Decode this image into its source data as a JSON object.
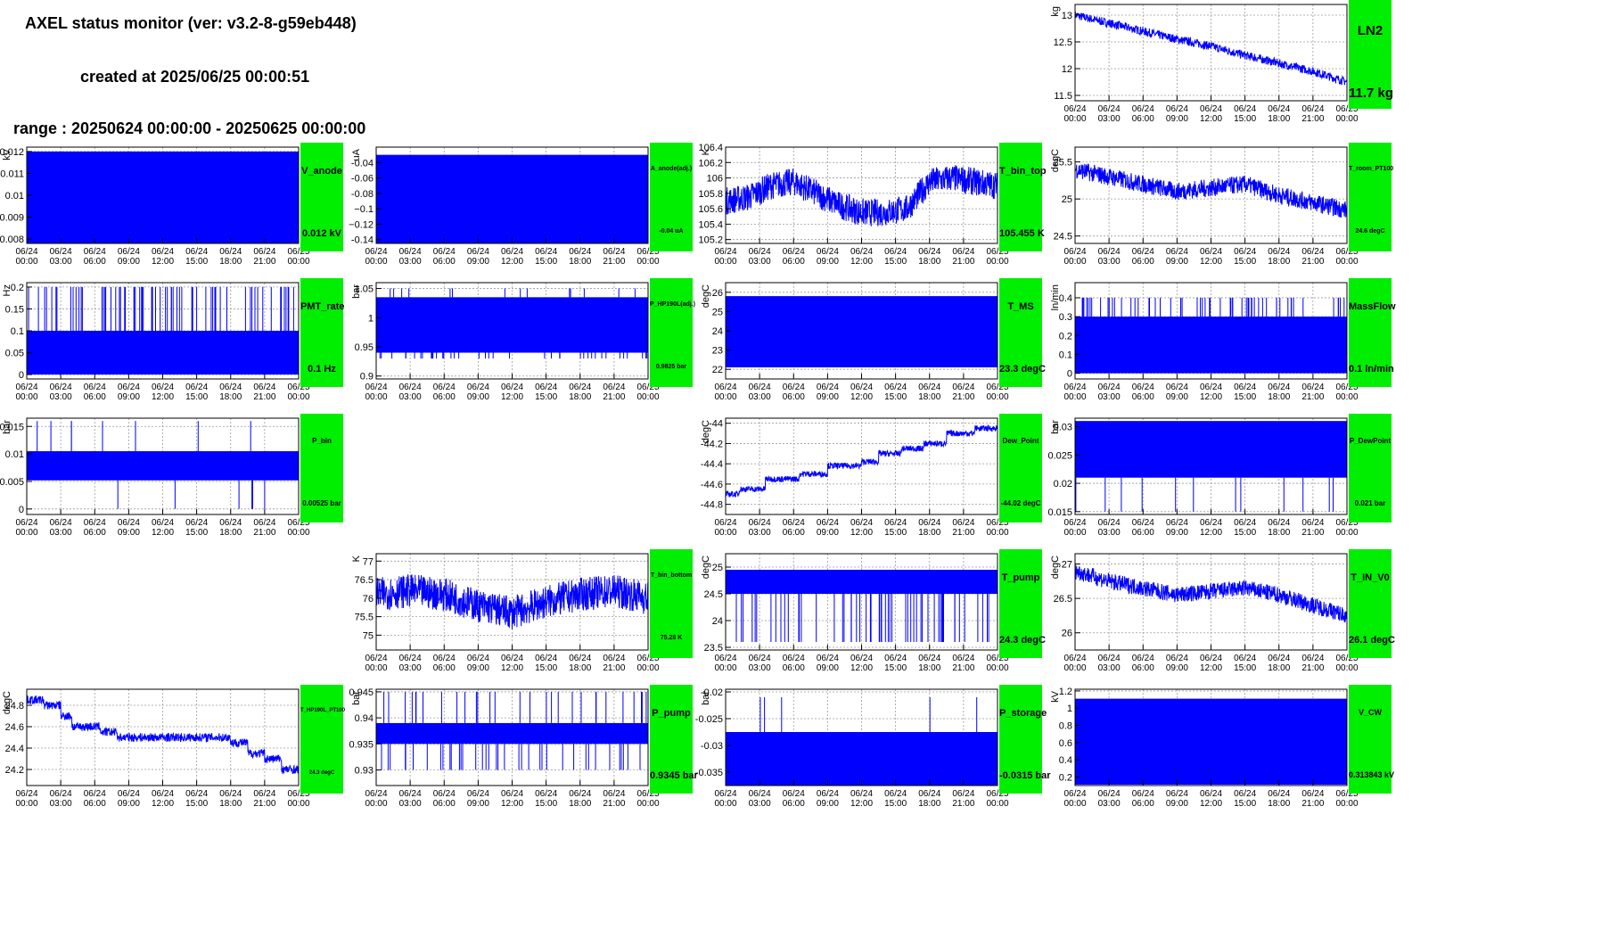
{
  "header": {
    "title": "AXEL status monitor (ver: v3.2-8-g59eb448)",
    "created": "created at 2025/06/25 00:00:51",
    "range": "range : 20250624 00:00:00 - 20250625 00:00:00"
  },
  "colors": {
    "trace": "#0000ff",
    "status_ok": "#00ee00",
    "frame": "#000000",
    "grid": "#9a9a9a"
  },
  "chart_data": [
    {
      "name": "LN2",
      "ylabel": "kg",
      "row": 0,
      "col": 3,
      "type": "line",
      "ylim": [
        11.4,
        13.2
      ],
      "yticks": [
        "11.5",
        "12",
        "12.5",
        "13"
      ],
      "ytick_values": [
        11.5,
        12,
        12.5,
        13
      ],
      "status_name": "LN2",
      "status_value": "11.7 kg",
      "name_size": 15,
      "value_size": 15,
      "series": {
        "kind": "line",
        "x": [
          0,
          3,
          6,
          9,
          12,
          15,
          18,
          21,
          24
        ],
        "values": [
          13.0,
          12.85,
          12.7,
          12.55,
          12.42,
          12.25,
          12.1,
          11.95,
          11.75
        ],
        "noise": 0.08
      }
    },
    {
      "name": "V_anode",
      "ylabel": "kV",
      "row": 1,
      "col": 0,
      "type": "line",
      "ylim": [
        0.0078,
        0.0122
      ],
      "yticks": [
        "0.008",
        "0.009",
        "0.01",
        "0.011",
        "0.012"
      ],
      "ytick_values": [
        0.008,
        0.009,
        0.01,
        0.011,
        0.012
      ],
      "status_name": "V_anode",
      "status_value": "0.012 kV",
      "name_size": 11,
      "value_size": 11,
      "series": {
        "kind": "fill",
        "lo": 0.0078,
        "hi": 0.012
      }
    },
    {
      "name": "A_anode(adj.)",
      "ylabel": "uA",
      "row": 1,
      "col": 1,
      "type": "line",
      "ylim": [
        -0.145,
        -0.02
      ],
      "yticks": [
        "-0.04",
        "-0.06",
        "-0.08",
        "−0.1",
        "−0.12",
        "-0.14"
      ],
      "ytick_values": [
        -0.04,
        -0.06,
        -0.08,
        -0.1,
        -0.12,
        -0.14
      ],
      "status_name": "A_anode(adj.)",
      "status_value": "-0.04 uA",
      "name_size": 7,
      "value_size": 7,
      "series": {
        "kind": "fill",
        "lo": -0.145,
        "hi": -0.03
      }
    },
    {
      "name": "T_bin_top",
      "ylabel": "K",
      "row": 1,
      "col": 2,
      "type": "line",
      "ylim": [
        105.15,
        106.4
      ],
      "yticks": [
        "105.2",
        "105.4",
        "105.6",
        "105.8",
        "106",
        "106.2",
        "106.4"
      ],
      "ytick_values": [
        105.2,
        105.4,
        105.6,
        105.8,
        106,
        106.2,
        106.4
      ],
      "status_name": "T_bin_top",
      "status_value": "105.455 K",
      "name_size": 11,
      "value_size": 11,
      "series": {
        "kind": "line",
        "x": [
          0,
          2,
          4,
          6,
          8,
          10,
          12,
          14,
          16,
          18,
          20,
          22,
          24
        ],
        "values": [
          105.7,
          105.75,
          105.9,
          105.95,
          105.8,
          105.65,
          105.55,
          105.55,
          105.6,
          105.95,
          106.0,
          105.95,
          105.9
        ],
        "noise": 0.18
      }
    },
    {
      "name": "T_room_PT100",
      "ylabel": "degC",
      "row": 1,
      "col": 3,
      "type": "line",
      "ylim": [
        24.4,
        25.7
      ],
      "yticks": [
        "24.5",
        "25",
        "25.5"
      ],
      "ytick_values": [
        24.5,
        25,
        25.5
      ],
      "status_name": "T_room_PT100",
      "status_value": "24.6 degC",
      "name_size": 7,
      "value_size": 7,
      "series": {
        "kind": "line",
        "x": [
          0,
          3,
          6,
          9,
          12,
          15,
          18,
          21,
          24
        ],
        "values": [
          25.4,
          25.3,
          25.2,
          25.1,
          25.15,
          25.2,
          25.05,
          24.95,
          24.85
        ],
        "noise": 0.12
      }
    },
    {
      "name": "PMT_rate",
      "ylabel": "Hz",
      "row": 2,
      "col": 0,
      "type": "line",
      "ylim": [
        -0.01,
        0.21
      ],
      "yticks": [
        "0",
        "0.05",
        "0.1",
        "0.15",
        "0.2"
      ],
      "ytick_values": [
        0,
        0.05,
        0.1,
        0.15,
        0.2
      ],
      "status_name": "PMT_rate",
      "status_value": "0.1 Hz",
      "name_size": 11,
      "value_size": 11,
      "series": {
        "kind": "fill",
        "lo": 0.0,
        "hi": 0.1,
        "spikes": 0.2,
        "spike_count": 70,
        "spikes_down": 0,
        "spike_down_count": 0
      }
    },
    {
      "name": "P_HP190L(adj.)",
      "ylabel": "bar",
      "row": 2,
      "col": 1,
      "type": "line",
      "ylim": [
        0.895,
        1.06
      ],
      "yticks": [
        "0.9",
        "0.95",
        "1",
        "1.05"
      ],
      "ytick_values": [
        0.9,
        0.95,
        1,
        1.05
      ],
      "status_name": "P_HP190L(adj.)",
      "status_value": "0.9825 bar",
      "name_size": 7,
      "value_size": 7,
      "series": {
        "kind": "fill",
        "lo": 0.94,
        "hi": 1.035,
        "spikes": 1.05,
        "spike_count": 14,
        "spikes_down": 0.93,
        "spike_down_count": 40
      }
    },
    {
      "name": "T_MS",
      "ylabel": "degC",
      "row": 2,
      "col": 2,
      "type": "line",
      "ylim": [
        21.5,
        26.5
      ],
      "yticks": [
        "22",
        "23",
        "24",
        "25",
        "26"
      ],
      "ytick_values": [
        22,
        23,
        24,
        25,
        26
      ],
      "status_name": "T_MS",
      "status_value": "23.3 degC",
      "name_size": 11,
      "value_size": 11,
      "series": {
        "kind": "fill",
        "lo": 22.1,
        "hi": 25.8
      }
    },
    {
      "name": "MassFlow",
      "ylabel": "ln/min",
      "row": 2,
      "col": 3,
      "type": "line",
      "ylim": [
        -0.03,
        0.48
      ],
      "yticks": [
        "0",
        "0.1",
        "0.2",
        "0.3",
        "0.4"
      ],
      "ytick_values": [
        0,
        0.1,
        0.2,
        0.3,
        0.4
      ],
      "status_name": "MassFlow",
      "status_value": "0.1 ln/min",
      "name_size": 11,
      "value_size": 11,
      "series": {
        "kind": "fill",
        "lo": 0.0,
        "hi": 0.3,
        "spikes": 0.4,
        "spike_count": 60,
        "spikes_down": 0,
        "spike_down_count": 0
      }
    },
    {
      "name": "P_bin",
      "ylabel": "bar",
      "row": 3,
      "col": 0,
      "type": "line",
      "ylim": [
        -0.001,
        0.0165
      ],
      "yticks": [
        "0",
        "0.005",
        "0.01",
        "0.015"
      ],
      "ytick_values": [
        0,
        0.005,
        0.01,
        0.015
      ],
      "status_name": "P_bin",
      "status_value": "0.00525 bar",
      "name_size": 8,
      "value_size": 8,
      "series": {
        "kind": "fill",
        "lo": 0.0052,
        "hi": 0.0105,
        "spikes": 0.016,
        "spike_count": 8,
        "spikes_down": 0.0,
        "spike_down_count": 6
      }
    },
    {
      "name": "Dew_Point",
      "ylabel": "degC",
      "row": 3,
      "col": 2,
      "type": "line",
      "ylim": [
        -44.9,
        -43.95
      ],
      "yticks": [
        "-44.8",
        "-44.6",
        "-44.4",
        "-44.2",
        "-44"
      ],
      "ytick_values": [
        -44.8,
        -44.6,
        -44.4,
        -44.2,
        -44
      ],
      "status_name": "Dew_Point",
      "status_value": "-44.02 degC",
      "name_size": 8,
      "value_size": 8,
      "series": {
        "kind": "step",
        "x": [
          0,
          1.2,
          3.5,
          6.5,
          9,
          10.5,
          12,
          13.5,
          15.5,
          17.5,
          19.5,
          22,
          24
        ],
        "values": [
          -44.7,
          -44.65,
          -44.55,
          -44.5,
          -44.42,
          -44.42,
          -44.38,
          -44.3,
          -44.25,
          -44.2,
          -44.1,
          -44.05,
          -44.05
        ],
        "noise": 0.03
      }
    },
    {
      "name": "P_DewPoint",
      "ylabel": "bar",
      "row": 3,
      "col": 3,
      "type": "line",
      "ylim": [
        0.0145,
        0.0315
      ],
      "yticks": [
        "0.015",
        "0.02",
        "0.025",
        "0.03"
      ],
      "ytick_values": [
        0.015,
        0.02,
        0.025,
        0.03
      ],
      "status_name": "P_DewPoint",
      "status_value": "0.021 bar",
      "name_size": 8,
      "value_size": 8,
      "series": {
        "kind": "fill",
        "lo": 0.021,
        "hi": 0.031,
        "spikes": 0.031,
        "spike_count": 0,
        "spikes_down": 0.015,
        "spike_down_count": 12
      }
    },
    {
      "name": "T_bin_bottom",
      "ylabel": "K",
      "row": 4,
      "col": 1,
      "type": "line",
      "ylim": [
        74.6,
        77.2
      ],
      "yticks": [
        "75",
        "75.5",
        "76",
        "76.5",
        "77"
      ],
      "ytick_values": [
        75,
        75.5,
        76,
        76.5,
        77
      ],
      "status_name": "T_bin_bottom",
      "status_value": "75.28 K",
      "name_size": 7,
      "value_size": 7,
      "series": {
        "kind": "line",
        "x": [
          0,
          3,
          6,
          9,
          12,
          15,
          18,
          21,
          24
        ],
        "values": [
          76.1,
          76.2,
          76.1,
          75.8,
          75.6,
          75.9,
          76.1,
          76.2,
          76.0
        ],
        "noise": 0.45
      }
    },
    {
      "name": "T_pump",
      "ylabel": "degC",
      "row": 4,
      "col": 2,
      "type": "line",
      "ylim": [
        23.45,
        25.25
      ],
      "yticks": [
        "23.5",
        "24",
        "24.5",
        "25"
      ],
      "ytick_values": [
        23.5,
        24,
        24.5,
        25
      ],
      "status_name": "T_pump",
      "status_value": "24.3 degC",
      "name_size": 11,
      "value_size": 11,
      "series": {
        "kind": "fill",
        "lo": 24.5,
        "hi": 24.95,
        "spikes": 24.95,
        "spike_count": 0,
        "spikes_down": 23.6,
        "spike_down_count": 60
      }
    },
    {
      "name": "T_IN_V0",
      "ylabel": "degC",
      "row": 4,
      "col": 3,
      "type": "line",
      "ylim": [
        25.75,
        27.15
      ],
      "yticks": [
        "26",
        "26.5",
        "27"
      ],
      "ytick_values": [
        26,
        26.5,
        27
      ],
      "status_name": "T_IN_V0",
      "status_value": "26.1 degC",
      "name_size": 11,
      "value_size": 11,
      "series": {
        "kind": "line",
        "x": [
          0,
          3,
          6,
          9,
          12,
          15,
          18,
          21,
          24
        ],
        "values": [
          26.9,
          26.75,
          26.65,
          26.55,
          26.6,
          26.65,
          26.55,
          26.4,
          26.25
        ],
        "noise": 0.12
      }
    },
    {
      "name": "T_HP190L_PT100",
      "ylabel": "degC",
      "row": 5,
      "col": 0,
      "type": "line",
      "ylim": [
        24.05,
        24.95
      ],
      "yticks": [
        "24.2",
        "24.4",
        "24.6",
        "24.8"
      ],
      "ytick_values": [
        24.2,
        24.4,
        24.6,
        24.8
      ],
      "status_name": "T_HP190L_PT100",
      "status_value": "24.3 degC",
      "name_size": 6,
      "value_size": 6,
      "series": {
        "kind": "step",
        "x": [
          0,
          1.5,
          3,
          4,
          6.5,
          8,
          10,
          12,
          14,
          16,
          18,
          19.5,
          21,
          22.5,
          24
        ],
        "values": [
          24.85,
          24.8,
          24.7,
          24.6,
          24.55,
          24.5,
          24.5,
          24.5,
          24.5,
          24.5,
          24.45,
          24.35,
          24.3,
          24.2,
          24.2
        ],
        "noise": 0.04
      }
    },
    {
      "name": "P_pump",
      "ylabel": "bar",
      "row": 5,
      "col": 1,
      "type": "line",
      "ylim": [
        0.927,
        0.9455
      ],
      "yticks": [
        "0.93",
        "0.935",
        "0.94",
        "0.945"
      ],
      "ytick_values": [
        0.93,
        0.935,
        0.94,
        0.945
      ],
      "status_name": "P_pump",
      "status_value": "0.9345 bar",
      "name_size": 11,
      "value_size": 11,
      "series": {
        "kind": "fill",
        "lo": 0.935,
        "hi": 0.939,
        "spikes": 0.945,
        "spike_count": 30,
        "spikes_down": 0.93,
        "spike_down_count": 40
      }
    },
    {
      "name": "P_storage",
      "ylabel": "bar",
      "row": 5,
      "col": 2,
      "type": "line",
      "ylim": [
        -0.0375,
        -0.0195
      ],
      "yticks": [
        "-0.02",
        "-0.025",
        "-0.03",
        "-0.035"
      ],
      "ytick_values": [
        -0.02,
        -0.025,
        -0.03,
        -0.035
      ],
      "status_name": "P_storage",
      "status_value": "-0.0315 bar",
      "name_size": 11,
      "value_size": 11,
      "series": {
        "kind": "fill",
        "lo": -0.0375,
        "hi": -0.0275,
        "spikes": -0.021,
        "spike_count": 5,
        "spikes_down": -0.0375,
        "spike_down_count": 0
      }
    },
    {
      "name": "V_CW",
      "ylabel": "kV",
      "row": 5,
      "col": 3,
      "type": "line",
      "ylim": [
        0.1,
        1.22
      ],
      "yticks": [
        "0.2",
        "0.4",
        "0.6",
        "0.8",
        "1",
        "1.2"
      ],
      "ytick_values": [
        0.2,
        0.4,
        0.6,
        0.8,
        1,
        1.2
      ],
      "status_name": "V_CW",
      "status_value": "0.313843 kV",
      "name_size": 9,
      "value_size": 9,
      "series": {
        "kind": "fill",
        "lo": 0.11,
        "hi": 1.11
      }
    }
  ],
  "x_axis": {
    "ticks": [
      0,
      3,
      6,
      9,
      12,
      15,
      18,
      21,
      24
    ],
    "dates": [
      "06/24",
      "06/24",
      "06/24",
      "06/24",
      "06/24",
      "06/24",
      "06/24",
      "06/24",
      "06/25"
    ],
    "times": [
      "00:00",
      "03:00",
      "06:00",
      "09:00",
      "12:00",
      "15:00",
      "18:00",
      "21:00",
      "00:00"
    ],
    "xlim": [
      0,
      24
    ]
  }
}
